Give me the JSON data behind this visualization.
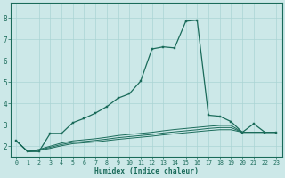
{
  "xlabel": "Humidex (Indice chaleur)",
  "xlim": [
    -0.5,
    23.5
  ],
  "ylim": [
    1.5,
    8.7
  ],
  "yticks": [
    2,
    3,
    4,
    5,
    6,
    7,
    8
  ],
  "xticks": [
    0,
    1,
    2,
    3,
    4,
    5,
    6,
    7,
    8,
    9,
    10,
    11,
    12,
    13,
    14,
    15,
    16,
    17,
    18,
    19,
    20,
    21,
    22,
    23
  ],
  "background_color": "#cce8e8",
  "grid_color": "#aad4d4",
  "line_color": "#1a6b5a",
  "line1_x": [
    0,
    1,
    2,
    3,
    4,
    5,
    6,
    7,
    8,
    9,
    10,
    11,
    12,
    13,
    14,
    15,
    16,
    17,
    18,
    19,
    20,
    21,
    22,
    23
  ],
  "line1_y": [
    2.25,
    1.75,
    1.75,
    2.6,
    2.6,
    3.1,
    3.3,
    3.55,
    3.85,
    4.25,
    4.45,
    5.05,
    6.55,
    6.65,
    6.6,
    7.85,
    7.9,
    3.45,
    3.4,
    3.15,
    2.65,
    3.05,
    2.65,
    2.65
  ],
  "line2_x": [
    0,
    1,
    2,
    3,
    4,
    5,
    6,
    7,
    8,
    9,
    10,
    11,
    12,
    13,
    14,
    15,
    16,
    17,
    18,
    19,
    20,
    21,
    22,
    23
  ],
  "line2_y": [
    2.25,
    1.75,
    1.85,
    2.0,
    2.15,
    2.25,
    2.3,
    2.35,
    2.42,
    2.5,
    2.55,
    2.6,
    2.65,
    2.72,
    2.78,
    2.83,
    2.88,
    2.93,
    2.97,
    2.97,
    2.65,
    2.65,
    2.65,
    2.65
  ],
  "line3_x": [
    0,
    1,
    2,
    3,
    4,
    5,
    6,
    7,
    8,
    9,
    10,
    11,
    12,
    13,
    14,
    15,
    16,
    17,
    18,
    19,
    20,
    21,
    22,
    23
  ],
  "line3_y": [
    2.25,
    1.75,
    1.82,
    1.95,
    2.08,
    2.18,
    2.22,
    2.27,
    2.33,
    2.4,
    2.45,
    2.5,
    2.55,
    2.62,
    2.67,
    2.72,
    2.77,
    2.83,
    2.87,
    2.87,
    2.65,
    2.65,
    2.65,
    2.65
  ],
  "line4_x": [
    0,
    1,
    2,
    3,
    4,
    5,
    6,
    7,
    8,
    9,
    10,
    11,
    12,
    13,
    14,
    15,
    16,
    17,
    18,
    19,
    20,
    21,
    22,
    23
  ],
  "line4_y": [
    2.25,
    1.75,
    1.8,
    1.9,
    2.02,
    2.12,
    2.16,
    2.2,
    2.26,
    2.32,
    2.37,
    2.42,
    2.47,
    2.53,
    2.58,
    2.63,
    2.68,
    2.73,
    2.77,
    2.77,
    2.65,
    2.65,
    2.65,
    2.65
  ]
}
